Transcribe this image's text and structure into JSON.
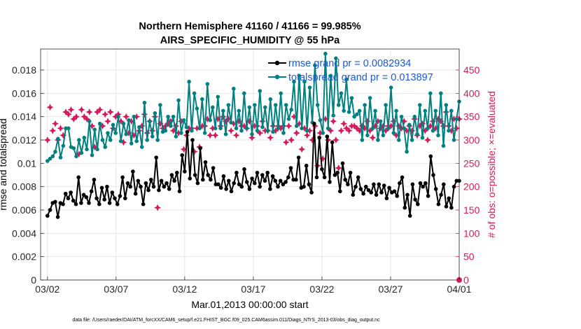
{
  "chart_data": {
    "type": "line",
    "title": "Northern Hemisphere 41160 / 41166 = 99.985%",
    "subtitle": "AIRS_SPECIFIC_HUMIDITY @ 55 hPa",
    "xlabel": "Mar.01,2013 00:00:00 start",
    "ylabel_left": "rmse and totalspread",
    "ylabel_right": "# of obs: o=possible; ×=evaluated",
    "footnote": "data file: /Users/raeder/DAI/ATM_forcXX/CAM6_setup/f.e21.FHIST_BGC.f09_025.CAM6assim.011/Diags_NTrS_2013-03/obs_diag_output.nc",
    "x_ticks": [
      "03/02",
      "03/07",
      "03/12",
      "03/17",
      "03/22",
      "03/27",
      "04/01"
    ],
    "x_range_days": [
      0.5,
      31.0
    ],
    "x_tick_days": [
      1,
      6,
      11,
      16,
      21,
      26,
      31
    ],
    "y_left_ticks": [
      "0",
      "0.002",
      "0.004",
      "0.006",
      "0.008",
      "0.01",
      "0.012",
      "0.014",
      "0.016",
      "0.018"
    ],
    "y_left_range": [
      0,
      0.0198
    ],
    "y_right_ticks": [
      "0",
      "50",
      "100",
      "150",
      "200",
      "250",
      "300",
      "350",
      "400",
      "450"
    ],
    "y_right_range": [
      0,
      495
    ],
    "colors": {
      "rmse": "#000000",
      "spread": "#008080",
      "obs": "#d6185a",
      "legend_text": "#1a5ad6"
    },
    "series": [
      {
        "name": "rmse",
        "legend": "rmse grand pr = 0.0082934",
        "color": "#000000",
        "values": [
          0.0055,
          0.006,
          0.0066,
          0.0067,
          0.0054,
          0.0066,
          0.0065,
          0.0074,
          0.007,
          0.0075,
          0.0068,
          0.0065,
          0.0088,
          0.0066,
          0.0073,
          0.0071,
          0.0066,
          0.0076,
          0.0086,
          0.007,
          0.0065,
          0.0079,
          0.0069,
          0.008,
          0.0066,
          0.0075,
          0.007,
          0.0065,
          0.0072,
          0.0088,
          0.007,
          0.0083,
          0.008,
          0.0093,
          0.0074,
          0.0085,
          0.008,
          0.0065,
          0.0083,
          0.0077,
          0.0086,
          0.008,
          0.0105,
          0.0077,
          0.0085,
          0.008,
          0.0083,
          0.0078,
          0.009,
          0.0085,
          0.0092,
          0.0076,
          0.0107,
          0.0093,
          0.0127,
          0.0087,
          0.012,
          0.009,
          0.0083,
          0.0113,
          0.0086,
          0.0101,
          0.009,
          0.0086,
          0.0096,
          0.0082,
          0.0082,
          0.0079,
          0.0089,
          0.0078,
          0.0085,
          0.0076,
          0.0083,
          0.0092,
          0.0082,
          0.008,
          0.0095,
          0.0084,
          0.0078,
          0.0087,
          0.0083,
          0.0092,
          0.008,
          0.009,
          0.0085,
          0.0092,
          0.0078,
          0.0089,
          0.0085,
          0.008,
          0.0085,
          0.0082,
          0.0084,
          0.0088,
          0.0096,
          0.0086,
          0.0086,
          0.0105,
          0.0079,
          0.008,
          0.0098,
          0.0082,
          0.0075,
          0.0134,
          0.0088,
          0.0122,
          0.0095,
          0.0088,
          0.0123,
          0.0084,
          0.0118,
          0.009,
          0.0092,
          0.0076,
          0.01,
          0.0086,
          0.0082,
          0.0092,
          0.0073,
          0.008,
          0.0088,
          0.0078,
          0.0074,
          0.008,
          0.0077,
          0.0075,
          0.0082,
          0.0073,
          0.0082,
          0.0075,
          0.0081,
          0.007,
          0.0079,
          0.0075,
          0.0076,
          0.0072,
          0.0083,
          0.0088,
          0.0062,
          0.0073,
          0.0055,
          0.0082,
          0.0069,
          0.0065,
          0.0083,
          0.008,
          0.0083,
          0.0072,
          0.0106,
          0.009,
          0.0078,
          0.0065,
          0.0073,
          0.0082,
          0.0063,
          0.007,
          0.0062,
          0.008,
          0.0085,
          0.0085
        ]
      },
      {
        "name": "totalspread",
        "legend": "totalspread grand pr = 0.013897",
        "color": "#008080",
        "values": [
          0.0102,
          0.0104,
          0.0106,
          0.011,
          0.0121,
          0.0105,
          0.0115,
          0.013,
          0.013,
          0.0114,
          0.0113,
          0.0106,
          0.012,
          0.0109,
          0.0122,
          0.0112,
          0.0136,
          0.0107,
          0.0129,
          0.0112,
          0.0134,
          0.012,
          0.0114,
          0.0126,
          0.012,
          0.0133,
          0.0126,
          0.014,
          0.0119,
          0.0134,
          0.0125,
          0.0137,
          0.0117,
          0.014,
          0.0119,
          0.0131,
          0.0114,
          0.0152,
          0.012,
          0.0136,
          0.0123,
          0.0143,
          0.012,
          0.015,
          0.0127,
          0.0128,
          0.014,
          0.0132,
          0.014,
          0.0123,
          0.0154,
          0.0126,
          0.0137,
          0.0131,
          0.017,
          0.0128,
          0.016,
          0.0147,
          0.013,
          0.0155,
          0.0126,
          0.0168,
          0.0137,
          0.0148,
          0.013,
          0.0157,
          0.013,
          0.0145,
          0.0125,
          0.015,
          0.0135,
          0.0164,
          0.013,
          0.0145,
          0.0128,
          0.016,
          0.013,
          0.0148,
          0.0125,
          0.015,
          0.0128,
          0.0162,
          0.0131,
          0.0148,
          0.0128,
          0.0155,
          0.0127,
          0.015,
          0.013,
          0.016,
          0.0126,
          0.015,
          0.0138,
          0.0146,
          0.017,
          0.0132,
          0.0175,
          0.013,
          0.017,
          0.0128,
          0.0165,
          0.0135,
          0.0184,
          0.015,
          0.0137,
          0.0126,
          0.0194,
          0.013,
          0.0175,
          0.0141,
          0.019,
          0.015,
          0.016,
          0.0145,
          0.0172,
          0.0144,
          0.0156,
          0.014,
          0.0142,
          0.0145,
          0.012,
          0.015,
          0.0124,
          0.0156,
          0.013,
          0.0145,
          0.012,
          0.0136,
          0.0124,
          0.015,
          0.013,
          0.0165,
          0.0126,
          0.0145,
          0.012,
          0.014,
          0.013,
          0.011,
          0.0133,
          0.012,
          0.014,
          0.0125,
          0.015,
          0.0122,
          0.0145,
          0.013,
          0.016,
          0.0128,
          0.0145,
          0.0124,
          0.016,
          0.0115,
          0.015,
          0.0128,
          0.0145,
          0.012,
          0.0138,
          0.0153
        ]
      },
      {
        "name": "obs possible / evaluated",
        "axis": "right",
        "marker": "star",
        "color": "#d6185a",
        "values": [
          300,
          370,
          320,
          335,
          300,
          325,
          310,
          360,
          355,
          365,
          345,
          350,
          270,
          365,
          350,
          345,
          360,
          330,
          285,
          360,
          365,
          330,
          355,
          340,
          360,
          325,
          350,
          355,
          340,
          295,
          350,
          315,
          340,
          310,
          350,
          320,
          330,
          355,
          315,
          340,
          320,
          350,
          155,
          335,
          325,
          330,
          335,
          340,
          320,
          330,
          315,
          340,
          280,
          310,
          325,
          325,
          275,
          325,
          285,
          330,
          330,
          345,
          310,
          325,
          310,
          345,
          330,
          350,
          340,
          345,
          320,
          335,
          310,
          340,
          330,
          330,
          325,
          340,
          305,
          330,
          330,
          315,
          340,
          320,
          320,
          305,
          330,
          320,
          330,
          325,
          330,
          295,
          330,
          300,
          350,
          315,
          335,
          280,
          325,
          310,
          320,
          300,
          330,
          245,
          315,
          260,
          345,
          300,
          320,
          340,
          300,
          240,
          320,
          335,
          325,
          320,
          330,
          330,
          325,
          320,
          330,
          325,
          340,
          320,
          305,
          330,
          340,
          325,
          330,
          320,
          330,
          330,
          340,
          310,
          330,
          325,
          340,
          320,
          330,
          320,
          345,
          310,
          330,
          335,
          320,
          300,
          330,
          340,
          325,
          345,
          340,
          330,
          360,
          330,
          320,
          345,
          325,
          345
        ]
      }
    ]
  }
}
